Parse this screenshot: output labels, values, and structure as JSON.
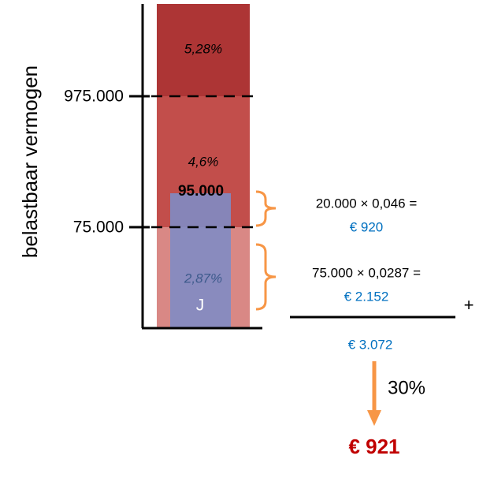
{
  "axis": {
    "title": "belastbaar vermogen",
    "labels": [
      "975.000",
      "75.000"
    ]
  },
  "brackets": [
    {
      "rate": "5,28%"
    },
    {
      "rate": "4,6%"
    },
    {
      "rate": "2,87%"
    }
  ],
  "holding": {
    "label": "J",
    "amount": "95.000"
  },
  "calculation": {
    "steps": [
      {
        "formula": "20.000 × 0,046 =",
        "result": "€ 920"
      },
      {
        "formula": "75.000 × 0,0287 =",
        "result": "€ 2.152"
      }
    ],
    "operator": "+",
    "total": "€ 3.072",
    "factor": "30%",
    "outcome": "€ 921"
  }
}
